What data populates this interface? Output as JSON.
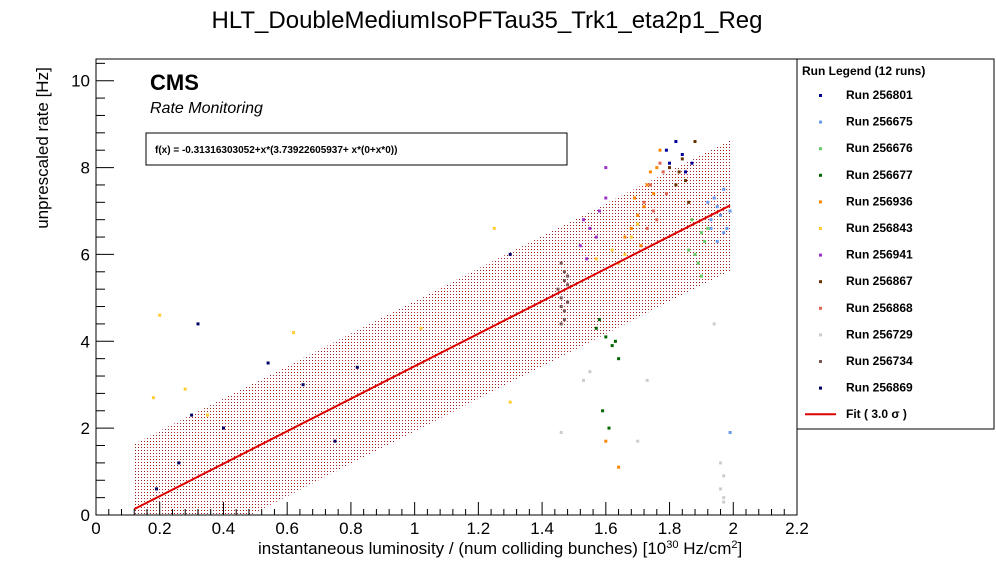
{
  "chart_data": {
    "type": "scatter",
    "title": "HLT_DoubleMediumIsoPFTau35_Trk1_eta2p1_Reg",
    "xlabel": "instantaneous luminosity / (num colliding bunches) [10",
    "xlabel_sup": "30",
    "xlabel_tail": " Hz/cm",
    "xlabel_sup2": "2",
    "xlabel_end": "]",
    "ylabel": "unprescaled rate [Hz]",
    "xlim": [
      0,
      2.2
    ],
    "ylim": [
      0,
      10.5
    ],
    "xticks": [
      "0",
      "0.2",
      "0.4",
      "0.6",
      "0.8",
      "1",
      "1.2",
      "1.4",
      "1.6",
      "1.8",
      "2",
      "2.2"
    ],
    "xtick_values": [
      0,
      0.2,
      0.4,
      0.6,
      0.8,
      1.0,
      1.2,
      1.4,
      1.6,
      1.8,
      2.0,
      2.2
    ],
    "yticks": [
      "0",
      "2",
      "4",
      "6",
      "8",
      "10"
    ],
    "ytick_values": [
      0,
      2,
      4,
      6,
      8,
      10
    ],
    "grid": false,
    "cms_label": "CMS",
    "cms_sublabel": "Rate Monitoring",
    "fit_formula": "f(x) = -0.31316303052+x*(3.73922605937+ x*(0+x*0))",
    "fit": {
      "intercept": -0.31316303052,
      "slope": 3.73922605937,
      "x_range": [
        0.12,
        1.99
      ],
      "band_halfwidth": 1.5,
      "color": "#dd0000"
    },
    "legend_title": "Run Legend (12 runs)",
    "legend_position": "right",
    "fit_legend_label": "Fit ( 3.0  σ )",
    "series": [
      {
        "name": "Run 256801",
        "color": "#000099",
        "points": [
          [
            1.82,
            8.6
          ],
          [
            1.84,
            8.3
          ],
          [
            1.87,
            8.1
          ],
          [
            1.79,
            8.4
          ],
          [
            1.85,
            7.9
          ],
          [
            1.8,
            8.1
          ]
        ]
      },
      {
        "name": "Run 256675",
        "color": "#6699ee",
        "points": [
          [
            1.93,
            6.8
          ],
          [
            1.95,
            7.1
          ],
          [
            1.97,
            6.5
          ],
          [
            1.99,
            7.0
          ],
          [
            1.94,
            7.3
          ],
          [
            1.96,
            6.9
          ],
          [
            1.98,
            6.6
          ],
          [
            1.92,
            7.2
          ],
          [
            1.95,
            6.3
          ],
          [
            1.99,
            1.9
          ],
          [
            1.97,
            7.5
          ],
          [
            1.93,
            6.6
          ]
        ]
      },
      {
        "name": "Run 256676",
        "color": "#66cc66",
        "points": [
          [
            1.88,
            6.0
          ],
          [
            1.9,
            6.5
          ],
          [
            1.89,
            5.8
          ],
          [
            1.91,
            6.3
          ],
          [
            1.87,
            6.8
          ],
          [
            1.9,
            5.5
          ],
          [
            1.86,
            6.1
          ],
          [
            1.92,
            6.6
          ]
        ]
      },
      {
        "name": "Run 256677",
        "color": "#006600",
        "points": [
          [
            1.58,
            4.5
          ],
          [
            1.6,
            4.1
          ],
          [
            1.62,
            3.9
          ],
          [
            1.59,
            2.4
          ],
          [
            1.61,
            2.0
          ],
          [
            1.64,
            3.6
          ],
          [
            1.57,
            4.3
          ],
          [
            1.63,
            4.0
          ]
        ]
      },
      {
        "name": "Run 256936",
        "color": "#ff8800",
        "points": [
          [
            1.68,
            6.6
          ],
          [
            1.72,
            7.1
          ],
          [
            1.75,
            7.4
          ],
          [
            1.7,
            6.9
          ],
          [
            1.73,
            7.6
          ],
          [
            1.66,
            6.4
          ],
          [
            1.76,
            8.0
          ],
          [
            1.71,
            6.2
          ],
          [
            1.74,
            7.9
          ],
          [
            1.69,
            7.3
          ],
          [
            1.77,
            8.4
          ],
          [
            1.6,
            1.7
          ],
          [
            1.64,
            1.1
          ]
        ]
      },
      {
        "name": "Run 256843",
        "color": "#ffcc33",
        "points": [
          [
            0.2,
            4.6
          ],
          [
            0.18,
            2.7
          ],
          [
            0.28,
            2.9
          ],
          [
            0.62,
            4.2
          ],
          [
            1.25,
            6.6
          ],
          [
            1.02,
            4.3
          ],
          [
            0.35,
            2.3
          ],
          [
            1.66,
            6.0
          ],
          [
            1.68,
            6.4
          ],
          [
            1.64,
            5.8
          ],
          [
            1.7,
            6.7
          ],
          [
            1.62,
            6.1
          ],
          [
            1.57,
            5.9
          ],
          [
            1.3,
            2.6
          ]
        ]
      },
      {
        "name": "Run 256941",
        "color": "#9933cc",
        "points": [
          [
            1.52,
            6.2
          ],
          [
            1.55,
            6.6
          ],
          [
            1.58,
            7.0
          ],
          [
            1.54,
            5.9
          ],
          [
            1.57,
            6.4
          ],
          [
            1.6,
            7.3
          ],
          [
            1.53,
            6.8
          ],
          [
            1.6,
            8.0
          ]
        ]
      },
      {
        "name": "Run 256867",
        "color": "#663300",
        "points": [
          [
            1.8,
            8.0
          ],
          [
            1.82,
            7.6
          ],
          [
            1.84,
            8.2
          ],
          [
            1.86,
            7.2
          ],
          [
            1.83,
            7.9
          ],
          [
            1.88,
            8.6
          ],
          [
            1.85,
            7.7
          ]
        ]
      },
      {
        "name": "Run 256868",
        "color": "#dd6655",
        "points": [
          [
            1.72,
            7.2
          ],
          [
            1.74,
            7.6
          ],
          [
            1.76,
            6.8
          ],
          [
            1.78,
            7.9
          ],
          [
            1.75,
            7.0
          ],
          [
            1.79,
            7.4
          ],
          [
            1.73,
            6.6
          ],
          [
            1.77,
            8.1
          ]
        ]
      },
      {
        "name": "Run 256729",
        "color": "#cccccc",
        "points": [
          [
            1.97,
            0.3
          ],
          [
            1.96,
            0.6
          ],
          [
            1.97,
            0.9
          ],
          [
            1.96,
            1.2
          ],
          [
            1.97,
            0.4
          ],
          [
            1.53,
            3.1
          ],
          [
            1.55,
            3.3
          ],
          [
            1.46,
            1.9
          ],
          [
            1.7,
            1.7
          ],
          [
            1.73,
            3.1
          ],
          [
            1.94,
            4.4
          ]
        ]
      },
      {
        "name": "Run 256734",
        "color": "#775555",
        "points": [
          [
            1.46,
            5.0
          ],
          [
            1.47,
            4.7
          ],
          [
            1.48,
            5.3
          ],
          [
            1.46,
            4.4
          ],
          [
            1.47,
            5.6
          ],
          [
            1.48,
            4.9
          ],
          [
            1.46,
            5.8
          ],
          [
            1.47,
            4.5
          ],
          [
            1.45,
            5.2
          ],
          [
            1.48,
            5.5
          ],
          [
            1.46,
            4.8
          ],
          [
            1.47,
            5.4
          ]
        ]
      },
      {
        "name": "Run 256869",
        "color": "#000066",
        "points": [
          [
            0.19,
            0.6
          ],
          [
            0.26,
            1.2
          ],
          [
            0.3,
            2.3
          ],
          [
            0.54,
            3.5
          ],
          [
            0.65,
            3.0
          ],
          [
            0.75,
            1.7
          ],
          [
            0.4,
            2.0
          ],
          [
            0.32,
            4.4
          ],
          [
            0.82,
            3.4
          ],
          [
            1.3,
            6.0
          ]
        ]
      }
    ]
  }
}
